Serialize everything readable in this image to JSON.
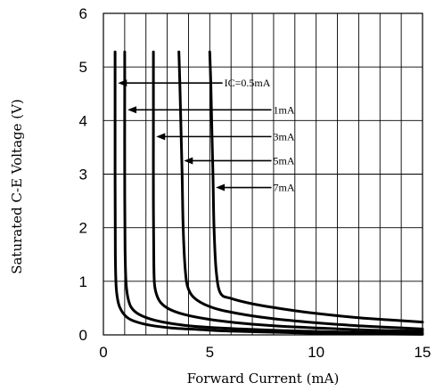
{
  "chart_data": {
    "type": "line",
    "title": "",
    "xlabel": "Forward Current (mA)",
    "ylabel": "Saturated C-E Voltage (V)",
    "xlim": [
      0,
      15
    ],
    "ylim": [
      0,
      6
    ],
    "xticks": [
      "0",
      "5",
      "10",
      "15"
    ],
    "xtick_values": [
      0,
      5,
      10,
      15
    ],
    "yticks": [
      "0",
      "1",
      "2",
      "3",
      "4",
      "5",
      "6"
    ],
    "ytick_values": [
      0,
      1,
      2,
      3,
      4,
      5,
      6
    ],
    "grid": true,
    "series": [
      {
        "name": "IC=0.5mA",
        "x": [
          0.55,
          0.55,
          0.55,
          0.56,
          0.6,
          0.7,
          0.85,
          1.1,
          1.5,
          2.2,
          3.2,
          4.5,
          6,
          8,
          10,
          12.5,
          15
        ],
        "y": [
          5.28,
          4.8,
          3.0,
          1.5,
          0.9,
          0.6,
          0.45,
          0.33,
          0.25,
          0.18,
          0.13,
          0.1,
          0.07,
          0.05,
          0.03,
          0.02,
          0.01
        ]
      },
      {
        "name": "1mA",
        "x": [
          1.0,
          1.0,
          1.0,
          1.02,
          1.06,
          1.15,
          1.3,
          1.6,
          2.1,
          2.8,
          3.8,
          5,
          6.5,
          8.5,
          10.5,
          13,
          15
        ],
        "y": [
          5.28,
          4.5,
          3.0,
          1.6,
          1.0,
          0.7,
          0.52,
          0.4,
          0.31,
          0.24,
          0.18,
          0.14,
          0.11,
          0.08,
          0.06,
          0.04,
          0.03
        ]
      },
      {
        "name": "3mA",
        "x": [
          2.35,
          2.35,
          2.35,
          2.37,
          2.4,
          2.5,
          2.7,
          3.1,
          3.8,
          4.8,
          6.2,
          8,
          10,
          12.5,
          15
        ],
        "y": [
          5.28,
          4.0,
          2.5,
          1.3,
          0.95,
          0.75,
          0.6,
          0.48,
          0.38,
          0.3,
          0.23,
          0.17,
          0.13,
          0.09,
          0.07
        ]
      },
      {
        "name": "5mA",
        "x": [
          3.55,
          3.6,
          3.65,
          3.7,
          3.75,
          3.85,
          4.0,
          4.4,
          5.2,
          6.3,
          7.8,
          9.6,
          11.6,
          13.5,
          15
        ],
        "y": [
          5.28,
          4.6,
          3.8,
          3.0,
          2.0,
          1.2,
          0.85,
          0.65,
          0.5,
          0.4,
          0.31,
          0.24,
          0.18,
          0.14,
          0.11
        ]
      },
      {
        "name": "7mA",
        "x": [
          5.0,
          5.05,
          5.1,
          5.15,
          5.2,
          5.3,
          5.5,
          6.0,
          7.0,
          8.5,
          10,
          12,
          13.5,
          15
        ],
        "y": [
          5.28,
          4.7,
          3.8,
          3.0,
          2.0,
          1.2,
          0.78,
          0.68,
          0.58,
          0.48,
          0.4,
          0.32,
          0.28,
          0.24
        ]
      }
    ],
    "annotations": [
      {
        "text": "IC=0.5mA",
        "arrow_from": [
          5.6,
          4.7
        ],
        "arrow_to": [
          0.6,
          4.7
        ]
      },
      {
        "text": "1mA",
        "arrow_from": [
          7.9,
          4.2
        ],
        "arrow_to": [
          1.05,
          4.2
        ]
      },
      {
        "text": "3mA",
        "arrow_from": [
          7.9,
          3.7
        ],
        "arrow_to": [
          2.4,
          3.7
        ]
      },
      {
        "text": "5mA",
        "arrow_from": [
          7.9,
          3.25
        ],
        "arrow_to": [
          3.7,
          3.25
        ]
      },
      {
        "text": "7mA",
        "arrow_from": [
          7.9,
          2.75
        ],
        "arrow_to": [
          5.2,
          2.75
        ]
      }
    ],
    "colors": {
      "line": "#000000",
      "grid": "#000000",
      "background": "#ffffff"
    }
  }
}
